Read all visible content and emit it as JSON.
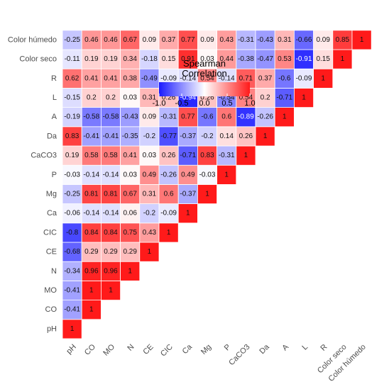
{
  "chart_data": {
    "type": "heatmap",
    "title": "",
    "legend": {
      "title_line1": "Spearman",
      "title_line2": "Correlation",
      "ticks": [
        "-1.0",
        "-0.5",
        "0.0",
        "0.5",
        "1.0"
      ],
      "tick_values": [
        -1.0,
        -0.5,
        0.0,
        0.5,
        1.0
      ],
      "range": [
        -1,
        1
      ],
      "low_color": "#1a1aff",
      "mid_color": "#ffffff",
      "high_color": "#ff1a1a",
      "placement": "top-center"
    },
    "variables": [
      "pH",
      "CO",
      "MO",
      "N",
      "CE",
      "CIC",
      "Ca",
      "Mg",
      "P",
      "CaCO3",
      "Da",
      "A",
      "L",
      "R",
      "Color seco",
      "Color húmedo"
    ],
    "rows": [
      [
        "1"
      ],
      [
        "-0.41",
        "1"
      ],
      [
        "-0.41",
        "1",
        "1"
      ],
      [
        "-0.34",
        "0.96",
        "0.96",
        "1"
      ],
      [
        "-0.68",
        "0.29",
        "0.29",
        "0.29",
        "1"
      ],
      [
        "-0.8",
        "0.84",
        "0.84",
        "0.75",
        "0.43",
        "1"
      ],
      [
        "-0.06",
        "-0.14",
        "-0.14",
        "0.06",
        "-0.2",
        "-0.09",
        "1"
      ],
      [
        "-0.25",
        "0.81",
        "0.81",
        "0.67",
        "0.31",
        "0.6",
        "-0.37",
        "1"
      ],
      [
        "-0.03",
        "-0.14",
        "-0.14",
        "0.03",
        "0.49",
        "-0.26",
        "0.49",
        "-0.03",
        "1"
      ],
      [
        "0.19",
        "0.58",
        "0.58",
        "0.41",
        "0.03",
        "0.26",
        "-0.71",
        "0.83",
        "-0.31",
        "1"
      ],
      [
        "0.83",
        "-0.41",
        "-0.41",
        "-0.35",
        "-0.2",
        "-0.77",
        "-0.37",
        "-0.2",
        "0.14",
        "0.26",
        "1"
      ],
      [
        "-0.19",
        "-0.58",
        "-0.58",
        "-0.43",
        "0.09",
        "-0.31",
        "0.77",
        "-0.6",
        "0.6",
        "-0.89",
        "-0.26",
        "1"
      ],
      [
        "-0.15",
        "0.2",
        "0.2",
        "0.03",
        "0.31",
        "0.26",
        "-0.94",
        "0.26",
        "-0.54",
        "0.54",
        "0.2",
        "-0.71",
        "1"
      ],
      [
        "0.62",
        "0.41",
        "0.41",
        "0.38",
        "-0.49",
        "-0.09",
        "-0.14",
        "0.54",
        "-0.14",
        "0.71",
        "0.37",
        "-0.6",
        "-0.09",
        "1"
      ],
      [
        "-0.11",
        "0.19",
        "0.19",
        "0.34",
        "-0.18",
        "0.15",
        "0.91",
        "0.03",
        "0.44",
        "-0.38",
        "-0.47",
        "0.53",
        "-0.91",
        "0.15",
        "1"
      ],
      [
        "-0.25",
        "0.46",
        "0.46",
        "0.67",
        "0.09",
        "0.37",
        "0.77",
        "0.09",
        "0.43",
        "-0.31",
        "-0.43",
        "0.31",
        "-0.66",
        "0.09",
        "0.85",
        "1"
      ]
    ],
    "grid": false
  }
}
